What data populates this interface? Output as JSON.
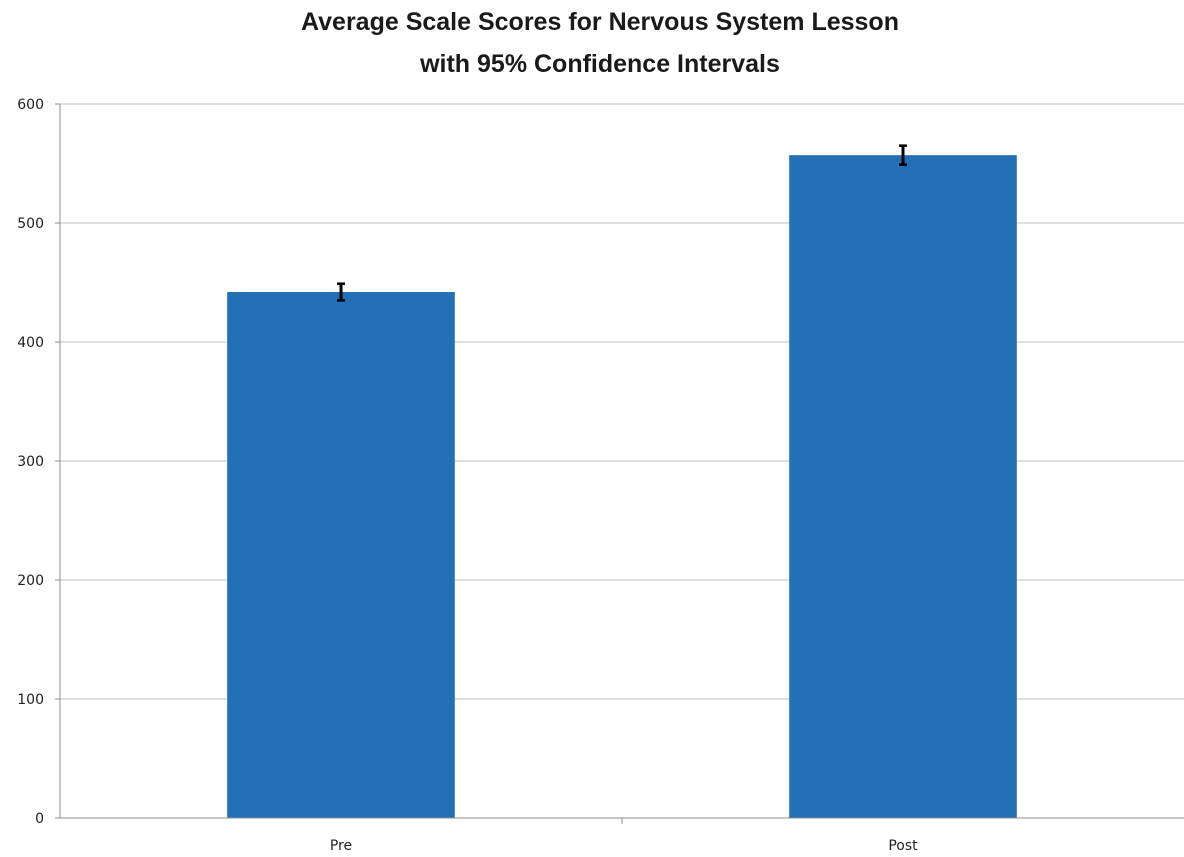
{
  "chart_data": {
    "type": "bar",
    "title": [
      "Average Scale Scores for Nervous System Lesson",
      "with 95% Confidence Intervals"
    ],
    "xlabel": "",
    "ylabel": "",
    "categories": [
      "Pre",
      "Post"
    ],
    "values": [
      442,
      557
    ],
    "error": [
      7,
      8
    ],
    "ylim": [
      0,
      600
    ],
    "yticks": [
      0,
      100,
      200,
      300,
      400,
      500,
      600
    ],
    "grid": true,
    "legend": "none",
    "colors": {
      "bar": "#2370B6",
      "grid": "#BFBFBF",
      "axis": "#8C8C8C",
      "errorbar": "#000000"
    }
  }
}
